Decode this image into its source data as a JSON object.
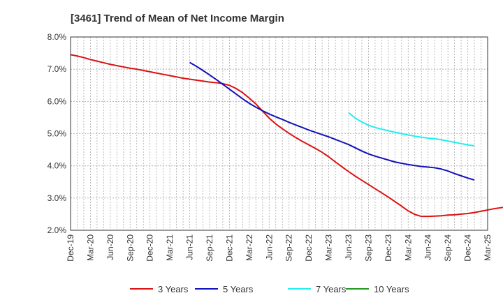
{
  "chart_data": {
    "type": "line",
    "title": "[3461]  Trend of Mean of Net Income Margin",
    "xlabel": "",
    "ylabel": "",
    "ylim": [
      2.0,
      8.0
    ],
    "y_ticks": [
      "2.0%",
      "3.0%",
      "4.0%",
      "5.0%",
      "6.0%",
      "7.0%",
      "8.0%"
    ],
    "y_tick_values": [
      2.0,
      3.0,
      4.0,
      5.0,
      6.0,
      7.0,
      8.0
    ],
    "x_ticks": [
      "Dec-19",
      "Mar-20",
      "Jun-20",
      "Sep-20",
      "Dec-20",
      "Mar-21",
      "Jun-21",
      "Sep-21",
      "Dec-21",
      "Mar-22",
      "Jun-22",
      "Sep-22",
      "Dec-22",
      "Mar-23",
      "Jun-23",
      "Sep-23",
      "Dec-23",
      "Mar-24",
      "Jun-24",
      "Sep-24",
      "Dec-24",
      "Mar-25"
    ],
    "grid": true,
    "legend_position": "bottom",
    "series": [
      {
        "name": "3 Years",
        "color": "#dd1111",
        "start_month": 0,
        "values": [
          7.45,
          7.41,
          7.36,
          7.3,
          7.25,
          7.2,
          7.15,
          7.11,
          7.07,
          7.03,
          7.0,
          6.96,
          6.92,
          6.88,
          6.84,
          6.8,
          6.76,
          6.72,
          6.69,
          6.66,
          6.63,
          6.6,
          6.58,
          6.55,
          6.5,
          6.4,
          6.27,
          6.1,
          5.92,
          5.7,
          5.48,
          5.3,
          5.15,
          5.01,
          4.88,
          4.76,
          4.65,
          4.54,
          4.42,
          4.28,
          4.12,
          3.97,
          3.82,
          3.68,
          3.55,
          3.42,
          3.29,
          3.16,
          3.03,
          2.89,
          2.75,
          2.6,
          2.49,
          2.43,
          2.43,
          2.44,
          2.45,
          2.47,
          2.48,
          2.5,
          2.52,
          2.55,
          2.59,
          2.63,
          2.67,
          2.7,
          2.72,
          2.75,
          2.81,
          2.92
        ]
      },
      {
        "name": "5 Years",
        "color": "#1111bb",
        "start_month": 18,
        "values": [
          7.21,
          7.09,
          6.96,
          6.82,
          6.68,
          6.53,
          6.38,
          6.23,
          6.08,
          5.94,
          5.82,
          5.71,
          5.61,
          5.52,
          5.44,
          5.35,
          5.27,
          5.19,
          5.11,
          5.04,
          4.97,
          4.9,
          4.82,
          4.74,
          4.66,
          4.56,
          4.46,
          4.37,
          4.3,
          4.24,
          4.18,
          4.12,
          4.08,
          4.04,
          4.01,
          3.98,
          3.96,
          3.94,
          3.9,
          3.84,
          3.76,
          3.69,
          3.62,
          3.56
        ]
      },
      {
        "name": "7 Years",
        "color": "#22eeee",
        "start_month": 42,
        "values": [
          5.65,
          5.48,
          5.36,
          5.26,
          5.19,
          5.14,
          5.09,
          5.04,
          5.0,
          4.96,
          4.92,
          4.89,
          4.86,
          4.84,
          4.81,
          4.77,
          4.73,
          4.69,
          4.65,
          4.62
        ]
      },
      {
        "name": "10 Years",
        "color": "#229922",
        "start_month": 0,
        "values": []
      }
    ]
  }
}
